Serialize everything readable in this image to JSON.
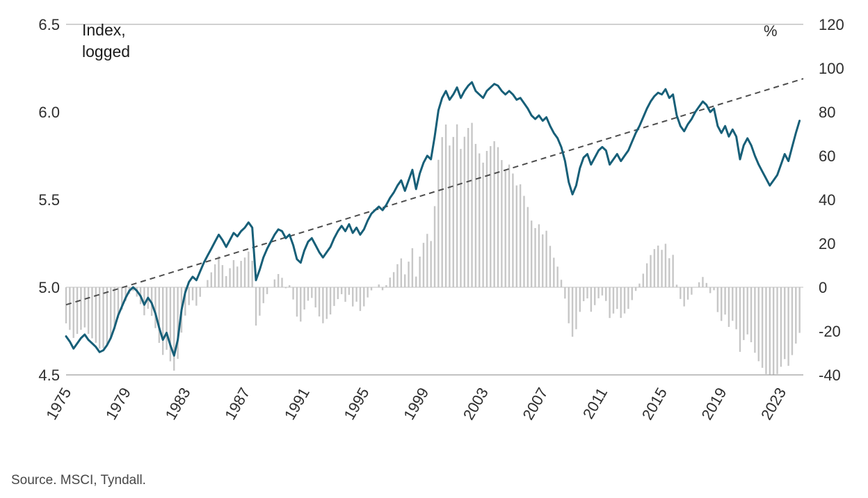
{
  "labels": {
    "index_label": "Index,\nlogged",
    "percent_label": "%",
    "source": "Source. MSCI, Tyndall."
  },
  "colors": {
    "index_line": "#175f78",
    "trend_line": "#4d4d4d",
    "deviation_bars": "#c7c7c7",
    "axis_text": "#2e2e2e"
  },
  "chart_data": {
    "type": "line",
    "x_start": 1975,
    "x_step_years": 0.25,
    "x_end": 2024.25,
    "x_domain": [
      1975,
      2024.5
    ],
    "left_axis": {
      "label": "Index, logged",
      "min": 4.5,
      "max": 6.5,
      "ticks": [
        "6.5",
        "6.0",
        "5.5",
        "5.0",
        "4.5"
      ]
    },
    "right_axis": {
      "label": "%",
      "min": -40,
      "max": 120,
      "ticks": [
        120,
        100,
        80,
        60,
        40,
        20,
        0,
        -20,
        -40
      ]
    },
    "x_axis": {
      "ticks": [
        1975,
        1979,
        1983,
        1987,
        1991,
        1995,
        1999,
        2003,
        2007,
        2011,
        2015,
        2019,
        2023
      ]
    },
    "series": [
      {
        "name": "index_logged",
        "type": "line",
        "axis": "left",
        "color": "#175f78",
        "values": [
          4.72,
          4.69,
          4.65,
          4.68,
          4.71,
          4.73,
          4.7,
          4.68,
          4.66,
          4.63,
          4.64,
          4.67,
          4.71,
          4.77,
          4.84,
          4.89,
          4.94,
          4.98,
          5.0,
          4.98,
          4.95,
          4.9,
          4.94,
          4.91,
          4.85,
          4.77,
          4.7,
          4.74,
          4.67,
          4.61,
          4.7,
          4.87,
          4.97,
          5.03,
          5.06,
          5.04,
          5.09,
          5.14,
          5.18,
          5.22,
          5.26,
          5.3,
          5.27,
          5.23,
          5.27,
          5.31,
          5.29,
          5.32,
          5.34,
          5.37,
          5.34,
          5.04,
          5.1,
          5.17,
          5.22,
          5.26,
          5.3,
          5.33,
          5.32,
          5.28,
          5.3,
          5.24,
          5.16,
          5.14,
          5.21,
          5.26,
          5.28,
          5.24,
          5.2,
          5.17,
          5.2,
          5.23,
          5.28,
          5.32,
          5.35,
          5.32,
          5.36,
          5.31,
          5.34,
          5.3,
          5.33,
          5.38,
          5.42,
          5.44,
          5.46,
          5.44,
          5.47,
          5.51,
          5.54,
          5.58,
          5.61,
          5.55,
          5.61,
          5.67,
          5.56,
          5.65,
          5.71,
          5.75,
          5.73,
          5.86,
          6.01,
          6.08,
          6.12,
          6.07,
          6.1,
          6.14,
          6.08,
          6.12,
          6.15,
          6.17,
          6.12,
          6.1,
          6.08,
          6.12,
          6.14,
          6.16,
          6.15,
          6.12,
          6.1,
          6.12,
          6.1,
          6.07,
          6.08,
          6.05,
          6.02,
          5.98,
          5.96,
          5.98,
          5.95,
          5.97,
          5.92,
          5.88,
          5.85,
          5.8,
          5.72,
          5.6,
          5.53,
          5.58,
          5.68,
          5.74,
          5.76,
          5.7,
          5.74,
          5.78,
          5.8,
          5.78,
          5.7,
          5.73,
          5.76,
          5.72,
          5.75,
          5.78,
          5.83,
          5.88,
          5.92,
          5.97,
          6.02,
          6.06,
          6.09,
          6.11,
          6.1,
          6.13,
          6.08,
          6.1,
          5.98,
          5.92,
          5.89,
          5.93,
          5.96,
          6.0,
          6.03,
          6.06,
          6.04,
          6.0,
          6.02,
          5.92,
          5.88,
          5.92,
          5.86,
          5.9,
          5.86,
          5.73,
          5.81,
          5.85,
          5.81,
          5.75,
          5.7,
          5.66,
          5.62,
          5.58,
          5.61,
          5.64,
          5.7,
          5.76,
          5.72,
          5.8,
          5.88,
          5.95
        ]
      },
      {
        "name": "trend",
        "type": "line",
        "style": "dashed",
        "axis": "left",
        "color": "#4d4d4d",
        "endpoints": {
          "x": [
            1975,
            2024.5
          ],
          "y": [
            4.9,
            6.19
          ]
        }
      },
      {
        "name": "deviation_from_trend_pct",
        "type": "bar",
        "axis": "right",
        "color": "#c7c7c7",
        "derived": "(exp(index_logged - trend) - 1) * 100"
      }
    ],
    "source": "Source. MSCI, Tyndall."
  }
}
